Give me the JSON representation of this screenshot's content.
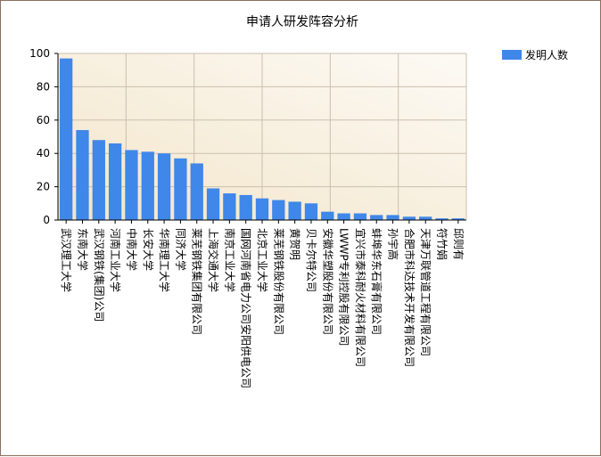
{
  "chart_data": {
    "type": "bar",
    "title": "申请人研发阵容分析",
    "xlabel": "",
    "ylabel": "",
    "ylim": [
      0,
      100
    ],
    "yticks": [
      0,
      20,
      40,
      60,
      80,
      100
    ],
    "grid": true,
    "legend_position": "top-right",
    "categories": [
      "武汉理工大学",
      "东南大学",
      "武汉钢铁(集团)公司",
      "河南工业大学",
      "中南大学",
      "长安大学",
      "华南理工大学",
      "同济大学",
      "莱芜钢铁集团有限公司",
      "上海交通大学",
      "南京工业大学",
      "国网河南省电力公司安阳供电公司",
      "北京工业大学",
      "莱芜钢铁股份有限公司",
      "黄贺明",
      "贝卡尔特公司",
      "安徽华塑股份有限公司",
      "LWWP专利控股有限公司",
      "宜兴市泰科耐火材料有限公司",
      "蚌埠华东石膏有限公司",
      "孙宇高",
      "合肥市科达技术开发有限公司",
      "天津万联管道工程有限公司",
      "符竹娟",
      "邱则有"
    ],
    "series": [
      {
        "name": "发明人数",
        "color": "#3f87e9",
        "values": [
          97,
          54,
          48,
          46,
          42,
          41,
          40,
          37,
          34,
          19,
          16,
          15,
          13,
          12,
          11,
          10,
          5,
          4,
          4,
          3,
          3,
          2,
          2,
          1,
          1
        ]
      }
    ]
  }
}
